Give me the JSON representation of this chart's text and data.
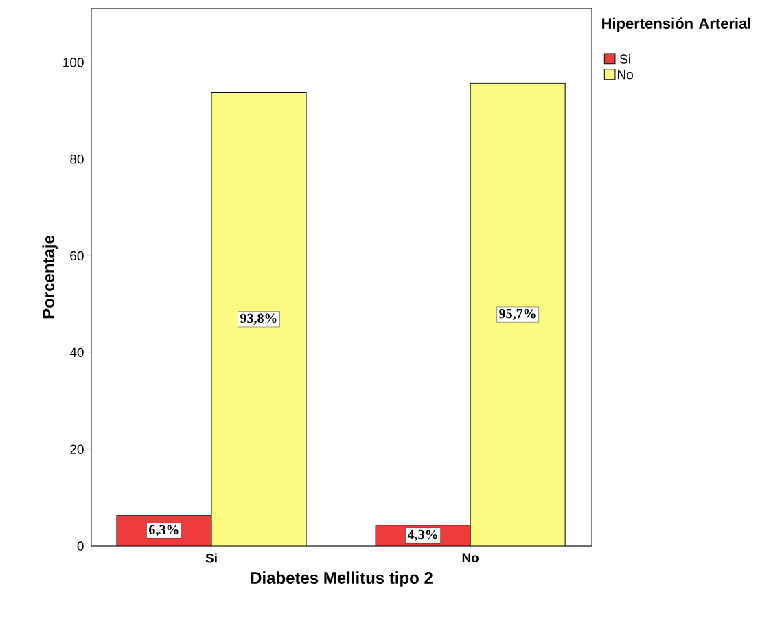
{
  "chart_data": {
    "type": "bar",
    "xlabel": "Diabetes Mellitus tipo 2",
    "ylabel": "Porcentaje",
    "legend_title": "Hipertensión Arterial",
    "categories": [
      "Si",
      "No"
    ],
    "series": [
      {
        "name": "Si",
        "color": "#ee3b3b",
        "values": [
          6.3,
          4.3
        ],
        "value_labels": [
          "6,3%",
          "4,3%"
        ]
      },
      {
        "name": "No",
        "color": "#fbf981",
        "values": [
          93.8,
          95.7
        ],
        "value_labels": [
          "93,8%",
          "95,7%"
        ]
      }
    ],
    "ylim": [
      0,
      111.2
    ],
    "yticks": [
      0,
      20,
      40,
      60,
      80,
      100
    ],
    "grid": false,
    "legend": "right"
  }
}
